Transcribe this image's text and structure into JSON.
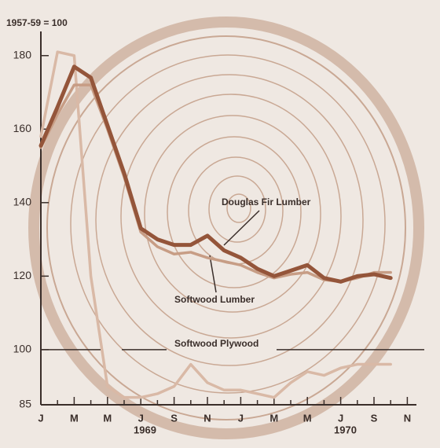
{
  "chart_data": {
    "type": "line",
    "y_label": "1957-59 = 100",
    "categories": [
      "J",
      null,
      "M",
      null,
      "M",
      null,
      "J",
      null,
      "S",
      null,
      "N",
      null,
      "J",
      null,
      "M",
      null,
      "M",
      null,
      "J",
      null,
      "S",
      null,
      "N"
    ],
    "year_labels": [
      "1969",
      "1970"
    ],
    "series": [
      {
        "name": "Softwood Plywood",
        "color": "#d9b9a6",
        "values": [
          158,
          181,
          180,
          120,
          90,
          87,
          87,
          88,
          90,
          96,
          91,
          89,
          89,
          88,
          87,
          91,
          94,
          93,
          95,
          96,
          96,
          96,
          null
        ]
      },
      {
        "name": "Softwood Lumber",
        "color": "#c79d85",
        "values": [
          155,
          164,
          172,
          172,
          160,
          147,
          132,
          128,
          126,
          126.5,
          125,
          124,
          123,
          121,
          119.5,
          120.5,
          121,
          119,
          118.5,
          119.5,
          121,
          121,
          null
        ]
      },
      {
        "name": "Douglas Fir Lumber",
        "color": "#94553a",
        "values": [
          155.5,
          166,
          177,
          174,
          161,
          148,
          133,
          130,
          128.5,
          128.5,
          131,
          127,
          125,
          122,
          120,
          121.5,
          123,
          119.5,
          118.5,
          120,
          120.5,
          119.5,
          null
        ]
      }
    ],
    "reference_line": 100,
    "ylim": [
      85,
      190
    ],
    "yticks": [
      85,
      100,
      120,
      140,
      160,
      180
    ]
  }
}
